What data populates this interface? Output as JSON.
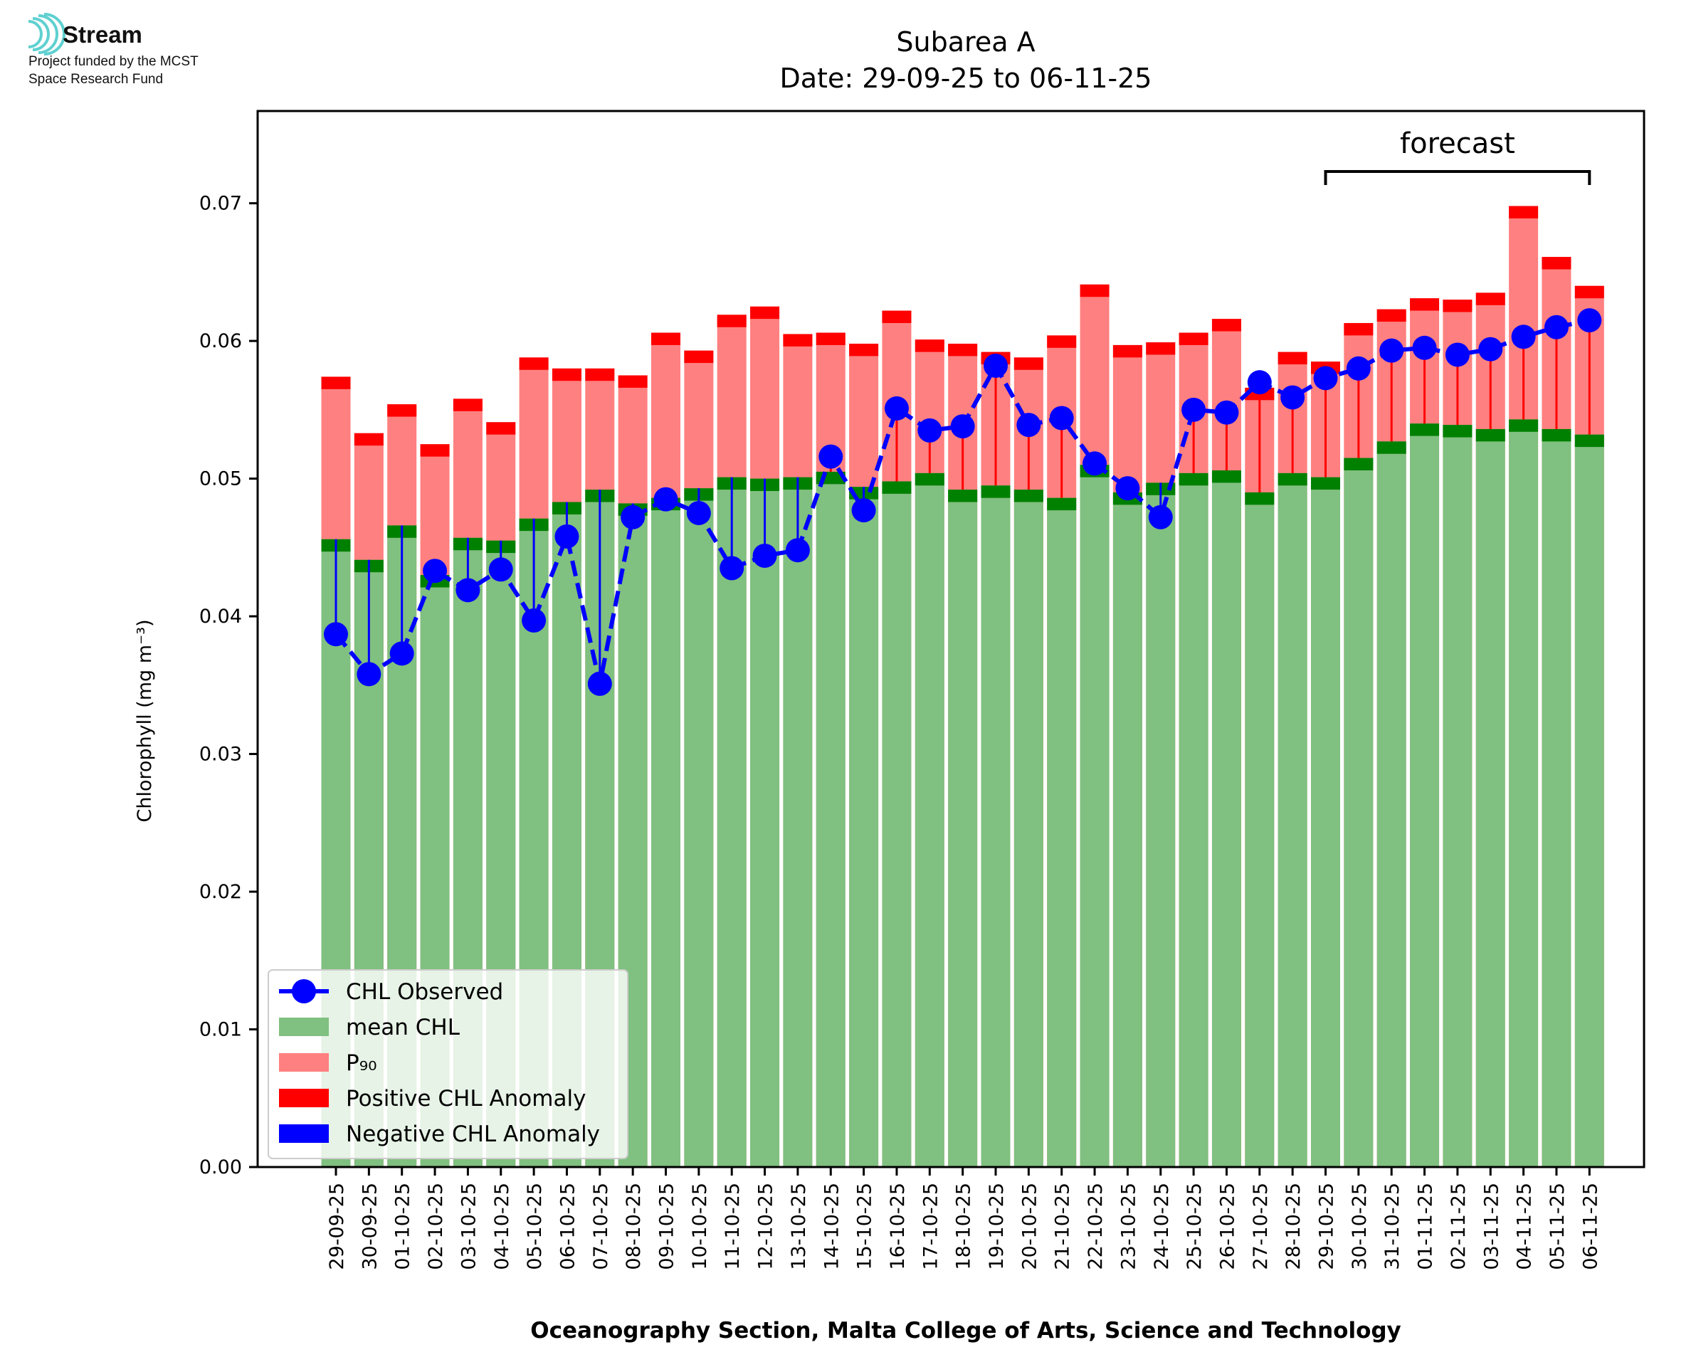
{
  "logo": {
    "brand": "Stream",
    "line1": "Project funded by the MCST",
    "line2": "Space Research Fund",
    "accent": "#5fd0d0"
  },
  "chart_data": {
    "type": "bar",
    "title": "Subarea A",
    "subtitle": "Date: 29-09-25 to 06-11-25",
    "xlabel": "Oceanography Section, Malta College of Arts, Science and Technology",
    "ylabel": "Chlorophyll (mg m⁻³)",
    "ylim": [
      0,
      0.0767
    ],
    "yticks": [
      "0.00",
      "0.01",
      "0.02",
      "0.03",
      "0.04",
      "0.05",
      "0.06",
      "0.07"
    ],
    "grid": false,
    "legend_position": "lower-left",
    "forecast_label": "forecast",
    "forecast_range": [
      "29-10-25",
      "06-11-25"
    ],
    "categories": [
      "29-09-25",
      "30-09-25",
      "01-10-25",
      "02-10-25",
      "03-10-25",
      "04-10-25",
      "05-10-25",
      "06-10-25",
      "07-10-25",
      "08-10-25",
      "09-10-25",
      "10-10-25",
      "11-10-25",
      "12-10-25",
      "13-10-25",
      "14-10-25",
      "15-10-25",
      "16-10-25",
      "17-10-25",
      "18-10-25",
      "19-10-25",
      "20-10-25",
      "21-10-25",
      "22-10-25",
      "23-10-25",
      "24-10-25",
      "25-10-25",
      "26-10-25",
      "27-10-25",
      "28-10-25",
      "29-10-25",
      "30-10-25",
      "31-10-25",
      "01-11-25",
      "02-11-25",
      "03-11-25",
      "04-11-25",
      "05-11-25",
      "06-11-25"
    ],
    "series": [
      {
        "name": "mean CHL",
        "color": "#80c080",
        "band_color": "#008000",
        "values": [
          0.0456,
          0.0441,
          0.0466,
          0.043,
          0.0457,
          0.0455,
          0.0471,
          0.0483,
          0.0492,
          0.0482,
          0.0486,
          0.0493,
          0.0501,
          0.05,
          0.0501,
          0.0505,
          0.0494,
          0.0498,
          0.0504,
          0.0492,
          0.0495,
          0.0492,
          0.0486,
          0.051,
          0.049,
          0.0497,
          0.0504,
          0.0506,
          0.049,
          0.0504,
          0.0501,
          0.0515,
          0.0527,
          0.054,
          0.0539,
          0.0536,
          0.0543,
          0.0536,
          0.0532
        ]
      },
      {
        "name": "P₉₀",
        "color": "#ff8080",
        "band_color": "#ff0000",
        "values": [
          0.0574,
          0.0533,
          0.0554,
          0.0525,
          0.0558,
          0.0541,
          0.0588,
          0.058,
          0.058,
          0.0575,
          0.0606,
          0.0593,
          0.0619,
          0.0625,
          0.0605,
          0.0606,
          0.0598,
          0.0622,
          0.0601,
          0.0598,
          0.0592,
          0.0588,
          0.0604,
          0.0641,
          0.0597,
          0.0599,
          0.0606,
          0.0616,
          0.0566,
          0.0592,
          0.0585,
          0.0613,
          0.0623,
          0.0631,
          0.063,
          0.0635,
          0.0698,
          0.0661,
          0.064
        ]
      },
      {
        "name": "CHL Observed",
        "color": "#0000ff",
        "values": [
          0.0387,
          0.0358,
          0.0373,
          0.0433,
          0.0419,
          0.0434,
          0.0397,
          0.0458,
          0.0351,
          0.0472,
          0.0485,
          0.0475,
          0.0435,
          0.0444,
          0.0448,
          0.0516,
          0.0477,
          0.0551,
          0.0535,
          0.0538,
          0.0582,
          0.0539,
          0.0544,
          0.0511,
          0.0493,
          0.0472,
          0.055,
          0.0548,
          0.057,
          0.0559,
          0.0573,
          0.058,
          0.0593,
          0.0595,
          0.059,
          0.0594,
          0.0603,
          0.061,
          0.0615
        ]
      }
    ],
    "legend": [
      {
        "label": "CHL Observed",
        "kind": "line-marker",
        "color": "#0000ff"
      },
      {
        "label": "mean CHL",
        "kind": "patch",
        "color": "#80c080"
      },
      {
        "label": "P₉₀",
        "kind": "patch",
        "color": "#ff8080"
      },
      {
        "label": "Positive CHL Anomaly",
        "kind": "patch",
        "color": "#ff0000"
      },
      {
        "label": "Negative CHL Anomaly",
        "kind": "patch",
        "color": "#0000ff"
      }
    ]
  }
}
